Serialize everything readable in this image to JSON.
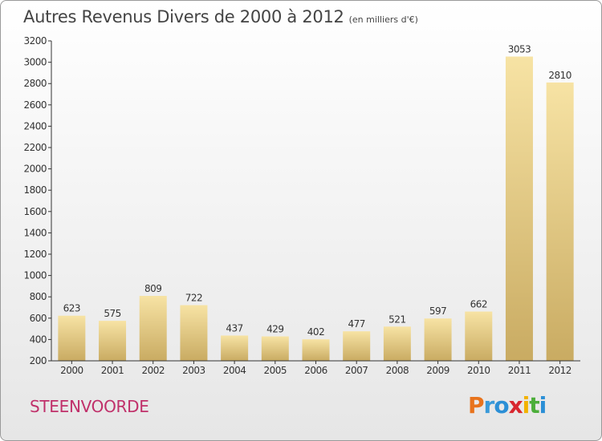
{
  "title": "Autres Revenus Divers de 2000 à 2012",
  "subtitle": "(en milliers d'€)",
  "place": "STEENVOORDE",
  "logo": {
    "text": "Proxiti",
    "letters": [
      {
        "ch": "P",
        "color": "#e8731c"
      },
      {
        "ch": "r",
        "color": "#3a9ad9"
      },
      {
        "ch": "o",
        "color": "#2b8fd6"
      },
      {
        "ch": "x",
        "color": "#d8262e"
      },
      {
        "ch": "i",
        "color": "#f2b200"
      },
      {
        "ch": "t",
        "color": "#4cae3a"
      },
      {
        "ch": "i",
        "color": "#2b8fd6"
      }
    ]
  },
  "colors": {
    "bar_top": "#f7e3a4",
    "bar_bottom": "#c9ab62",
    "title": "#444444",
    "place": "#c0306a"
  },
  "chart_data": {
    "type": "bar",
    "categories": [
      "2000",
      "2001",
      "2002",
      "2003",
      "2004",
      "2005",
      "2006",
      "2007",
      "2008",
      "2009",
      "2010",
      "2011",
      "2012"
    ],
    "values": [
      623,
      575,
      809,
      722,
      437,
      429,
      402,
      477,
      521,
      597,
      662,
      3053,
      2810
    ],
    "title": "Autres Revenus Divers de 2000 à 2012",
    "xlabel": "",
    "ylabel": "",
    "ylim": [
      200,
      3200
    ],
    "yticks": [
      200,
      400,
      600,
      800,
      1000,
      1200,
      1400,
      1600,
      1800,
      2000,
      2200,
      2400,
      2600,
      2800,
      3000,
      3200
    ],
    "grid": false,
    "legend": "none"
  }
}
